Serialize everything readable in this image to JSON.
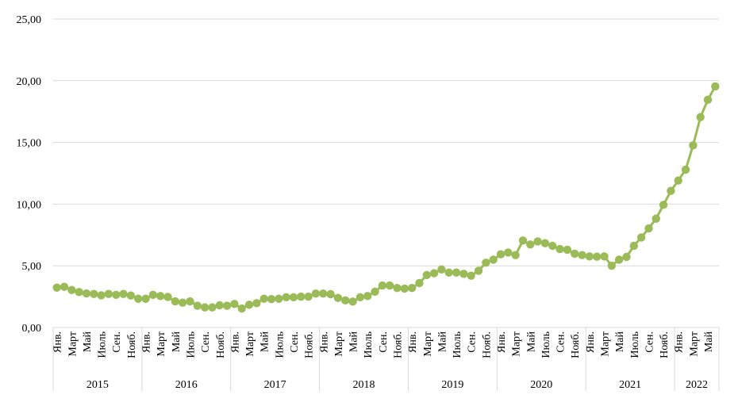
{
  "chart_data": {
    "type": "line",
    "title": "",
    "xlabel": "",
    "ylabel": "",
    "ylim": [
      0,
      25
    ],
    "yticks": [
      "0,00",
      "5,00",
      "10,00",
      "15,00",
      "20,00",
      "25,00"
    ],
    "ytick_values": [
      0,
      5,
      10,
      15,
      20,
      25
    ],
    "grid": true,
    "legend": "none",
    "color": "#9BBB59",
    "month_labels": [
      "Янв.",
      "",
      "Март",
      "",
      "Май",
      "",
      "Июль",
      "",
      "Сен.",
      "",
      "Нояб.",
      ""
    ],
    "years": [
      {
        "label": "2015",
        "values": [
          3.23,
          3.3,
          3.04,
          2.87,
          2.76,
          2.72,
          2.61,
          2.72,
          2.65,
          2.72,
          2.59,
          2.33
        ]
      },
      {
        "label": "2016",
        "values": [
          2.33,
          2.65,
          2.55,
          2.48,
          2.12,
          2.01,
          2.12,
          1.76,
          1.63,
          1.63,
          1.8,
          1.76
        ]
      },
      {
        "label": "2017",
        "values": [
          1.91,
          1.54,
          1.84,
          1.97,
          2.33,
          2.3,
          2.33,
          2.45,
          2.45,
          2.5,
          2.5,
          2.75
        ]
      },
      {
        "label": "2018",
        "values": [
          2.75,
          2.7,
          2.4,
          2.2,
          2.1,
          2.45,
          2.55,
          2.9,
          3.4,
          3.4,
          3.2,
          3.15
        ]
      },
      {
        "label": "2019",
        "values": [
          3.2,
          3.6,
          4.25,
          4.4,
          4.7,
          4.45,
          4.45,
          4.35,
          4.2,
          4.6,
          5.25,
          5.5
        ]
      },
      {
        "label": "2020",
        "values": [
          5.93,
          6.08,
          5.87,
          7.05,
          6.73,
          6.98,
          6.83,
          6.62,
          6.36,
          6.3,
          5.98,
          5.87
        ]
      },
      {
        "label": "2021",
        "values": [
          5.76,
          5.74,
          5.76,
          5.01,
          5.5,
          5.72,
          6.62,
          7.3,
          8.03,
          8.82,
          9.94,
          11.07
        ]
      },
      {
        "label": "2022",
        "values": [
          11.91,
          12.79,
          14.76,
          17.05,
          18.46,
          19.54
        ]
      }
    ]
  }
}
